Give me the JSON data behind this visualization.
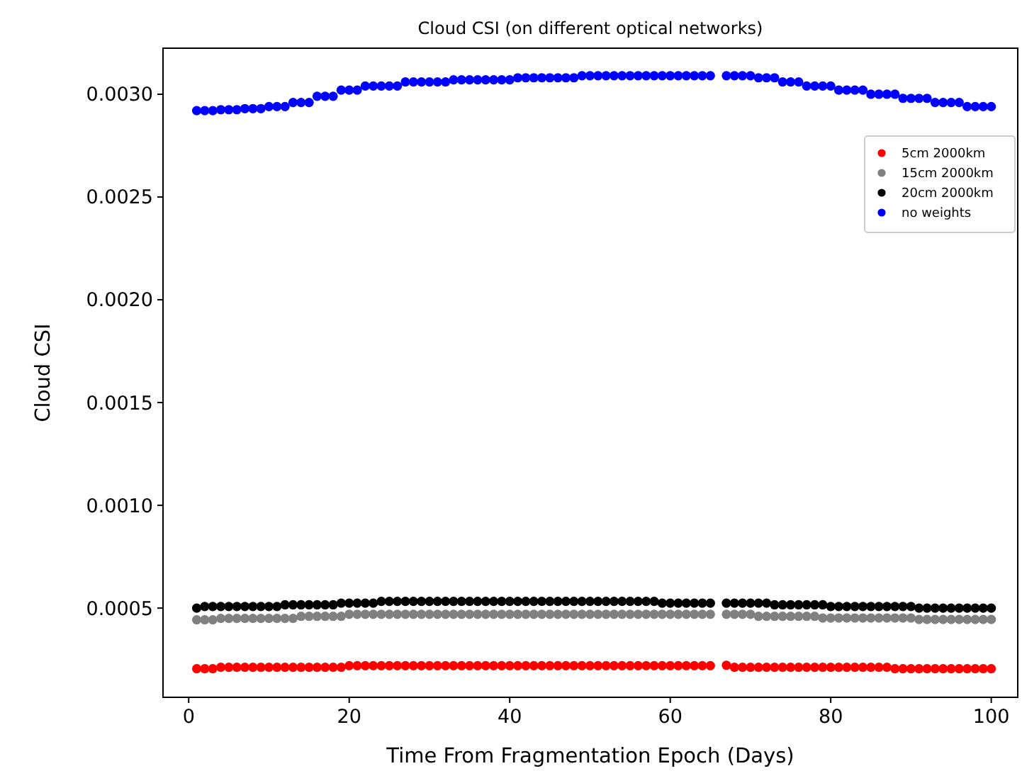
{
  "chart_data": {
    "type": "scatter",
    "title": "Cloud CSI (on different optical networks)",
    "xlabel": "Time From Fragmentation Epoch (Days)",
    "ylabel": "Cloud CSI",
    "x": [
      1,
      2,
      3,
      4,
      5,
      6,
      7,
      8,
      9,
      10,
      11,
      12,
      13,
      14,
      15,
      16,
      17,
      18,
      19,
      20,
      21,
      22,
      23,
      24,
      25,
      26,
      27,
      28,
      29,
      30,
      31,
      32,
      33,
      34,
      35,
      36,
      37,
      38,
      39,
      40,
      41,
      42,
      43,
      44,
      45,
      46,
      47,
      48,
      49,
      50,
      51,
      52,
      53,
      54,
      55,
      56,
      57,
      58,
      59,
      60,
      61,
      62,
      63,
      64,
      65,
      67,
      68,
      69,
      70,
      71,
      72,
      73,
      74,
      75,
      76,
      77,
      78,
      79,
      80,
      81,
      82,
      83,
      84,
      85,
      86,
      87,
      88,
      89,
      90,
      91,
      92,
      93,
      94,
      95,
      96,
      97,
      98,
      99,
      100
    ],
    "series": [
      {
        "name": "5cm 2000km",
        "color": "#ff0000",
        "values": [
          0.000205,
          0.000205,
          0.000205,
          0.000212,
          0.000212,
          0.000212,
          0.000212,
          0.000212,
          0.000212,
          0.000212,
          0.000212,
          0.000212,
          0.000212,
          0.000212,
          0.000212,
          0.000212,
          0.000212,
          0.000212,
          0.000212,
          0.00022,
          0.00022,
          0.00022,
          0.00022,
          0.00022,
          0.00022,
          0.00022,
          0.00022,
          0.00022,
          0.00022,
          0.00022,
          0.00022,
          0.00022,
          0.00022,
          0.00022,
          0.00022,
          0.00022,
          0.00022,
          0.00022,
          0.00022,
          0.00022,
          0.00022,
          0.00022,
          0.00022,
          0.00022,
          0.00022,
          0.00022,
          0.00022,
          0.00022,
          0.00022,
          0.00022,
          0.00022,
          0.00022,
          0.00022,
          0.00022,
          0.00022,
          0.00022,
          0.00022,
          0.00022,
          0.00022,
          0.00022,
          0.00022,
          0.00022,
          0.00022,
          0.00022,
          0.00022,
          0.000222,
          0.000212,
          0.000212,
          0.000212,
          0.000212,
          0.000212,
          0.000212,
          0.000212,
          0.000212,
          0.000212,
          0.000212,
          0.000212,
          0.000212,
          0.000212,
          0.000212,
          0.000212,
          0.000212,
          0.000212,
          0.000212,
          0.000212,
          0.000212,
          0.000205,
          0.000205,
          0.000205,
          0.000205,
          0.000205,
          0.000205,
          0.000205,
          0.000205,
          0.000205,
          0.000205,
          0.000205,
          0.000205,
          0.000205
        ]
      },
      {
        "name": "15cm 2000km",
        "color": "#808080",
        "values": [
          0.000443,
          0.000443,
          0.000443,
          0.00045,
          0.00045,
          0.00045,
          0.00045,
          0.00045,
          0.00045,
          0.00045,
          0.00045,
          0.00045,
          0.00045,
          0.00046,
          0.00046,
          0.00046,
          0.00046,
          0.00046,
          0.00046,
          0.00047,
          0.00047,
          0.00047,
          0.00047,
          0.00047,
          0.00047,
          0.00047,
          0.00047,
          0.00047,
          0.00047,
          0.00047,
          0.00047,
          0.00047,
          0.00047,
          0.00047,
          0.00047,
          0.00047,
          0.00047,
          0.00047,
          0.00047,
          0.00047,
          0.00047,
          0.00047,
          0.00047,
          0.00047,
          0.00047,
          0.00047,
          0.00047,
          0.00047,
          0.00047,
          0.00047,
          0.00047,
          0.00047,
          0.00047,
          0.00047,
          0.00047,
          0.00047,
          0.00047,
          0.00047,
          0.00047,
          0.00047,
          0.00047,
          0.00047,
          0.00047,
          0.00047,
          0.00047,
          0.00047,
          0.00047,
          0.00047,
          0.00047,
          0.00046,
          0.00046,
          0.00046,
          0.00046,
          0.00046,
          0.00046,
          0.00046,
          0.00046,
          0.000452,
          0.000452,
          0.000452,
          0.000452,
          0.000452,
          0.000452,
          0.000452,
          0.000452,
          0.000452,
          0.000452,
          0.000452,
          0.000452,
          0.000445,
          0.000445,
          0.000445,
          0.000445,
          0.000445,
          0.000445,
          0.000445,
          0.000445,
          0.000445,
          0.000445
        ]
      },
      {
        "name": "20cm 2000km",
        "color": "#000000",
        "values": [
          0.0005,
          0.000508,
          0.000508,
          0.000508,
          0.000508,
          0.000508,
          0.000508,
          0.000508,
          0.000508,
          0.000508,
          0.000508,
          0.000516,
          0.000516,
          0.000516,
          0.000516,
          0.000516,
          0.000516,
          0.000516,
          0.000524,
          0.000524,
          0.000524,
          0.000524,
          0.000524,
          0.000533,
          0.000533,
          0.000533,
          0.000533,
          0.000533,
          0.000533,
          0.000533,
          0.000533,
          0.000533,
          0.000533,
          0.000533,
          0.000533,
          0.000533,
          0.000533,
          0.000533,
          0.000533,
          0.000533,
          0.000533,
          0.000533,
          0.000533,
          0.000533,
          0.000533,
          0.000533,
          0.000533,
          0.000533,
          0.000533,
          0.000533,
          0.000533,
          0.000533,
          0.000533,
          0.000533,
          0.000533,
          0.000533,
          0.000533,
          0.000533,
          0.000524,
          0.000524,
          0.000524,
          0.000524,
          0.000524,
          0.000524,
          0.000524,
          0.000524,
          0.000524,
          0.000524,
          0.000524,
          0.000524,
          0.000524,
          0.000516,
          0.000516,
          0.000516,
          0.000516,
          0.000516,
          0.000516,
          0.000516,
          0.000508,
          0.000508,
          0.000508,
          0.000508,
          0.000508,
          0.000508,
          0.000508,
          0.000508,
          0.000508,
          0.000508,
          0.000508,
          0.0005,
          0.0005,
          0.0005,
          0.0005,
          0.0005,
          0.0005,
          0.0005,
          0.0005,
          0.0005,
          0.0005
        ]
      },
      {
        "name": "no weights",
        "color": "#0000ff",
        "values": [
          0.00292,
          0.00292,
          0.00292,
          0.002925,
          0.002925,
          0.002925,
          0.00293,
          0.00293,
          0.00293,
          0.00294,
          0.00294,
          0.00294,
          0.00296,
          0.00296,
          0.00296,
          0.00299,
          0.00299,
          0.00299,
          0.00302,
          0.00302,
          0.00302,
          0.00304,
          0.00304,
          0.00304,
          0.00304,
          0.00304,
          0.00306,
          0.00306,
          0.00306,
          0.00306,
          0.00306,
          0.00306,
          0.00307,
          0.00307,
          0.00307,
          0.00307,
          0.00307,
          0.00307,
          0.00307,
          0.00307,
          0.00308,
          0.00308,
          0.00308,
          0.00308,
          0.00308,
          0.00308,
          0.00308,
          0.00308,
          0.00309,
          0.00309,
          0.00309,
          0.00309,
          0.00309,
          0.00309,
          0.00309,
          0.00309,
          0.00309,
          0.00309,
          0.00309,
          0.00309,
          0.00309,
          0.00309,
          0.00309,
          0.00309,
          0.00309,
          0.00309,
          0.00309,
          0.00309,
          0.00309,
          0.00308,
          0.00308,
          0.00308,
          0.00306,
          0.00306,
          0.00306,
          0.00304,
          0.00304,
          0.00304,
          0.00304,
          0.00302,
          0.00302,
          0.00302,
          0.00302,
          0.003,
          0.003,
          0.003,
          0.003,
          0.00298,
          0.00298,
          0.00298,
          0.00298,
          0.00296,
          0.00296,
          0.00296,
          0.00296,
          0.00294,
          0.00294,
          0.00294,
          0.00294
        ]
      }
    ],
    "xlim": [
      -3.2,
      103.3
    ],
    "xticks": [
      0,
      20,
      40,
      60,
      80,
      100
    ],
    "ylim": [
      6.6e-05,
      0.003224
    ],
    "yticks": [
      0.0005,
      {
        "value": 0.001,
        "label": "0.0010"
      },
      0.0015,
      {
        "value": 0.002,
        "label": "0.0020"
      },
      0.0025,
      {
        "value": 0.003,
        "label": "0.0030"
      }
    ],
    "grid": false,
    "legend": "top right",
    "marker": "circle"
  }
}
